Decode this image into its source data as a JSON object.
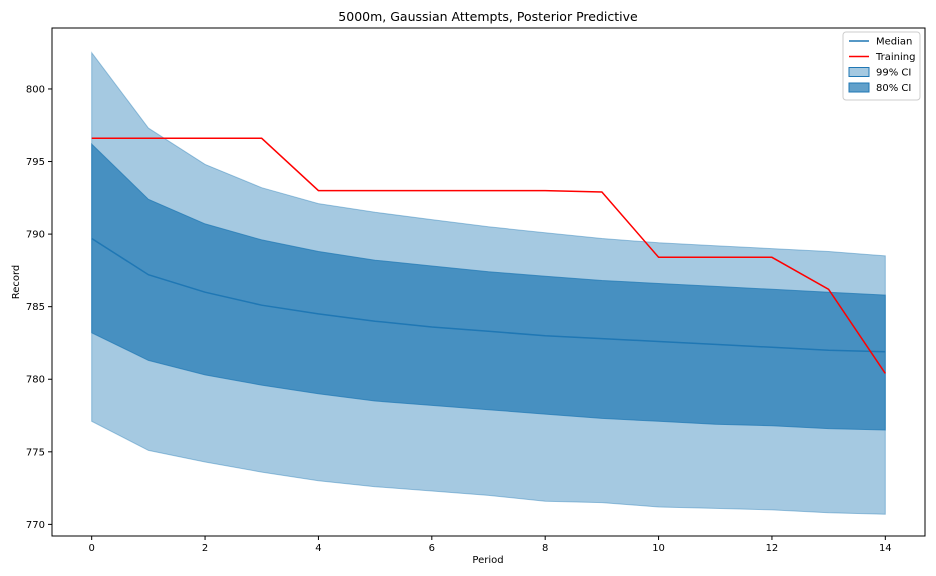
{
  "chart_data": {
    "type": "area",
    "title": "5000m, Gaussian Attempts, Posterior Predictive",
    "xlabel": "Period",
    "ylabel": "Record",
    "xlim": [
      -0.7,
      14.7
    ],
    "ylim": [
      769.2,
      804.2
    ],
    "xticks": [
      0,
      2,
      4,
      6,
      8,
      10,
      12,
      14
    ],
    "yticks": [
      770,
      775,
      780,
      785,
      790,
      795,
      800
    ],
    "grid": false,
    "legend_position": "upper right",
    "x": [
      0,
      1,
      2,
      3,
      4,
      5,
      6,
      7,
      8,
      9,
      10,
      11,
      12,
      13,
      14
    ],
    "series": [
      {
        "name": "Median",
        "kind": "line",
        "color": "#1f77b4",
        "values": [
          789.7,
          787.2,
          786.0,
          785.1,
          784.5,
          784.0,
          783.6,
          783.3,
          783.0,
          782.8,
          782.6,
          782.4,
          782.2,
          782.0,
          781.9
        ]
      },
      {
        "name": "Training",
        "kind": "line",
        "color": "#ff0000",
        "values": [
          796.6,
          796.6,
          796.6,
          796.6,
          793.0,
          793.0,
          793.0,
          793.0,
          793.0,
          792.9,
          788.4,
          788.4,
          788.4,
          786.2,
          780.4
        ]
      },
      {
        "name": "99% CI",
        "kind": "band",
        "color": "#1f77b4",
        "opacity": 0.4,
        "lower": [
          777.1,
          775.1,
          774.3,
          773.6,
          773.0,
          772.6,
          772.3,
          772.0,
          771.6,
          771.5,
          771.2,
          771.1,
          771.0,
          770.8,
          770.7
        ],
        "upper": [
          802.5,
          797.3,
          794.8,
          793.2,
          792.1,
          791.5,
          791.0,
          790.5,
          790.1,
          789.7,
          789.4,
          789.2,
          789.0,
          788.8,
          788.5
        ]
      },
      {
        "name": "80% CI",
        "kind": "band",
        "color": "#1f77b4",
        "opacity": 0.7,
        "lower": [
          783.2,
          781.3,
          780.3,
          779.6,
          779.0,
          778.5,
          778.2,
          777.9,
          777.6,
          777.3,
          777.1,
          776.9,
          776.8,
          776.6,
          776.5
        ],
        "upper": [
          796.2,
          792.4,
          790.7,
          789.6,
          788.8,
          788.2,
          787.8,
          787.4,
          787.1,
          786.8,
          786.6,
          786.4,
          786.2,
          786.0,
          785.8
        ]
      }
    ]
  }
}
